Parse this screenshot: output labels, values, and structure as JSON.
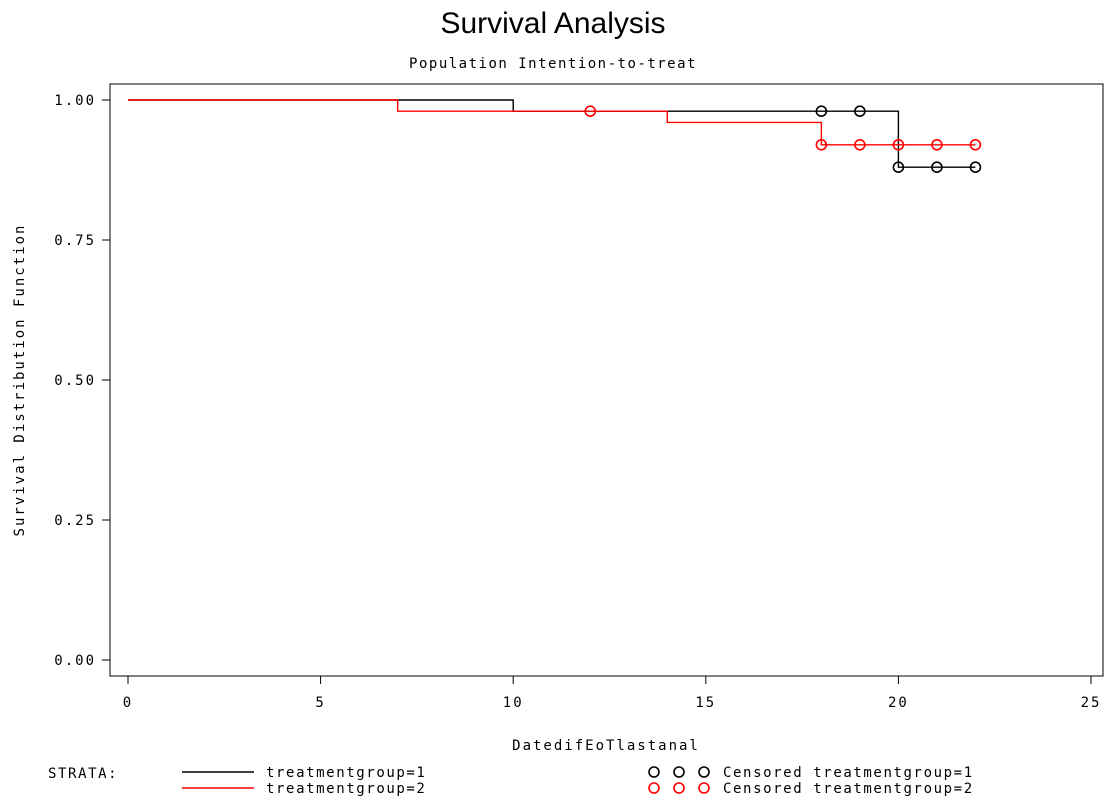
{
  "chart_data": {
    "type": "line",
    "step": true,
    "title": "Survival Analysis",
    "subtitle": "Population Intention-to-treat",
    "xlabel": "DatedifEoTlastanal",
    "ylabel": "Survival Distribution Function",
    "xlim": [
      0,
      25
    ],
    "ylim": [
      0,
      1
    ],
    "xticks": [
      0,
      5,
      10,
      15,
      20,
      25
    ],
    "xtick_labels": [
      "0",
      "5",
      "10",
      "15",
      "20",
      "25"
    ],
    "yticks": [
      0,
      0.25,
      0.5,
      0.75,
      1
    ],
    "ytick_labels": [
      "0.00",
      "0.25",
      "0.50",
      "0.75",
      "1.00"
    ],
    "grid": false,
    "series": [
      {
        "name": "treatmentgroup=1",
        "color": "#000000",
        "steps": [
          [
            0,
            1.0
          ],
          [
            10,
            0.98
          ],
          [
            20,
            0.88
          ],
          [
            22,
            0.88
          ]
        ],
        "censored": [
          [
            18,
            0.98
          ],
          [
            19,
            0.98
          ],
          [
            20,
            0.88
          ],
          [
            21,
            0.88
          ],
          [
            22,
            0.88
          ]
        ]
      },
      {
        "name": "treatmentgroup=2",
        "color": "#ff0000",
        "steps": [
          [
            0,
            1.0
          ],
          [
            7,
            0.98
          ],
          [
            14,
            0.96
          ],
          [
            18,
            0.92
          ],
          [
            22,
            0.92
          ]
        ],
        "censored": [
          [
            12,
            0.98
          ],
          [
            18,
            0.92
          ],
          [
            19,
            0.92
          ],
          [
            20,
            0.92
          ],
          [
            21,
            0.92
          ],
          [
            22,
            0.92
          ]
        ]
      }
    ],
    "legend": {
      "position": "bottom",
      "strata_label": "STRATA:",
      "entries": [
        {
          "label": "treatmentgroup=1",
          "color": "#000000"
        },
        {
          "label": "treatmentgroup=2",
          "color": "#ff0000"
        }
      ],
      "censored_entries": [
        {
          "label": "Censored treatmentgroup=1",
          "color": "#000000"
        },
        {
          "label": "Censored treatmentgroup=2",
          "color": "#ff0000"
        }
      ]
    }
  }
}
